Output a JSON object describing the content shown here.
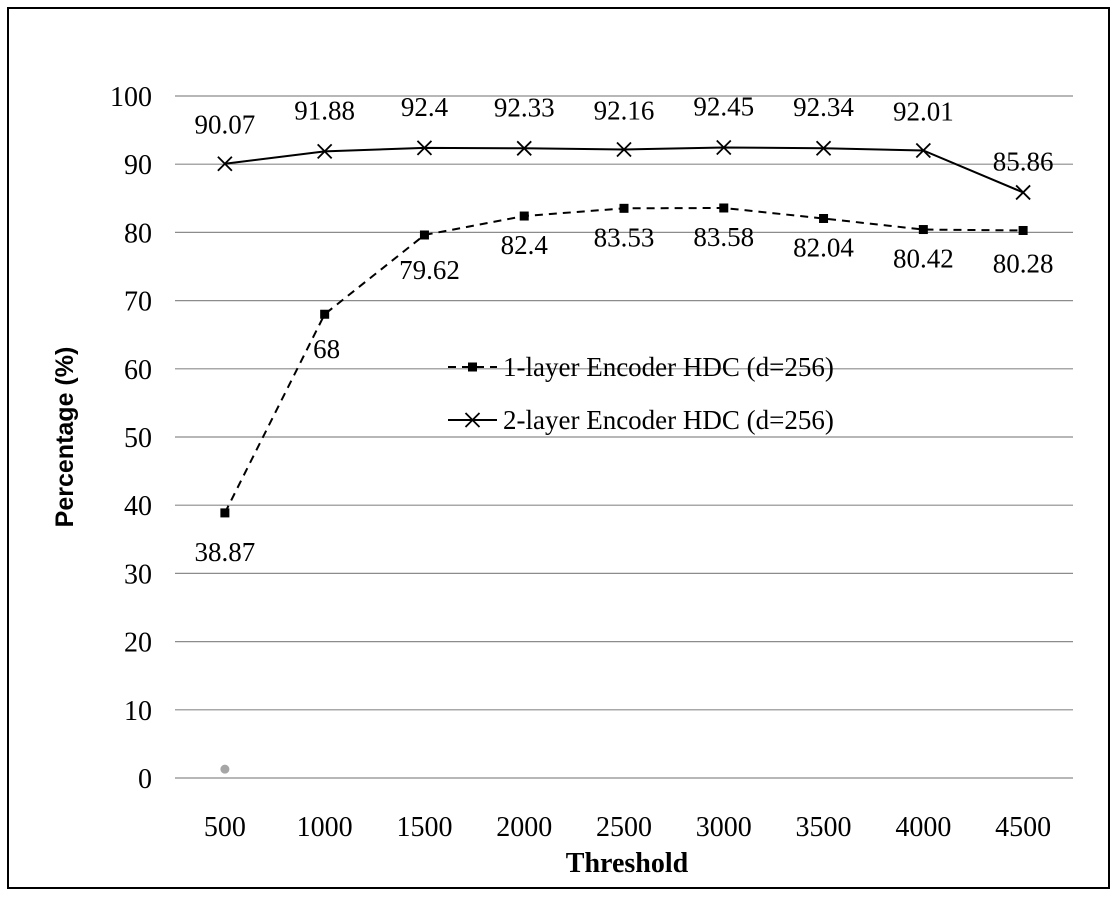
{
  "chart_data": {
    "type": "line",
    "title": "",
    "xlabel": "Threshold",
    "ylabel": "Percentage (%)",
    "categories": [
      "500",
      "1000",
      "1500",
      "2000",
      "2500",
      "3000",
      "3500",
      "4000",
      "4500"
    ],
    "ylim": [
      0,
      100
    ],
    "yticks": [
      "0",
      "10",
      "20",
      "30",
      "40",
      "50",
      "60",
      "70",
      "80",
      "90",
      "100"
    ],
    "grid": true,
    "legend_position": "center",
    "series": [
      {
        "name": "1-layer Encoder HDC (d=256)",
        "values": [
          38.87,
          68,
          79.62,
          82.4,
          83.53,
          83.58,
          82.04,
          80.42,
          80.28
        ],
        "labels": [
          "38.87",
          "68",
          "79.62",
          "82.4",
          "83.53",
          "83.58",
          "82.04",
          "80.42",
          "80.28"
        ],
        "line_style": "dashed",
        "marker": "square",
        "color": "#000000"
      },
      {
        "name": "2-layer Encoder HDC (d=256)",
        "values": [
          90.07,
          91.88,
          92.4,
          92.33,
          92.16,
          92.45,
          92.34,
          92.01,
          85.86
        ],
        "labels": [
          "90.07",
          "91.88",
          "92.4",
          "92.33",
          "92.16",
          "92.45",
          "92.34",
          "92.01",
          "85.86"
        ],
        "line_style": "solid",
        "marker": "x",
        "color": "#000000"
      }
    ],
    "extra_point": {
      "x": "500",
      "y": 1,
      "color": "#a6a6a6"
    },
    "gridline_color": "#8c8c8c"
  }
}
